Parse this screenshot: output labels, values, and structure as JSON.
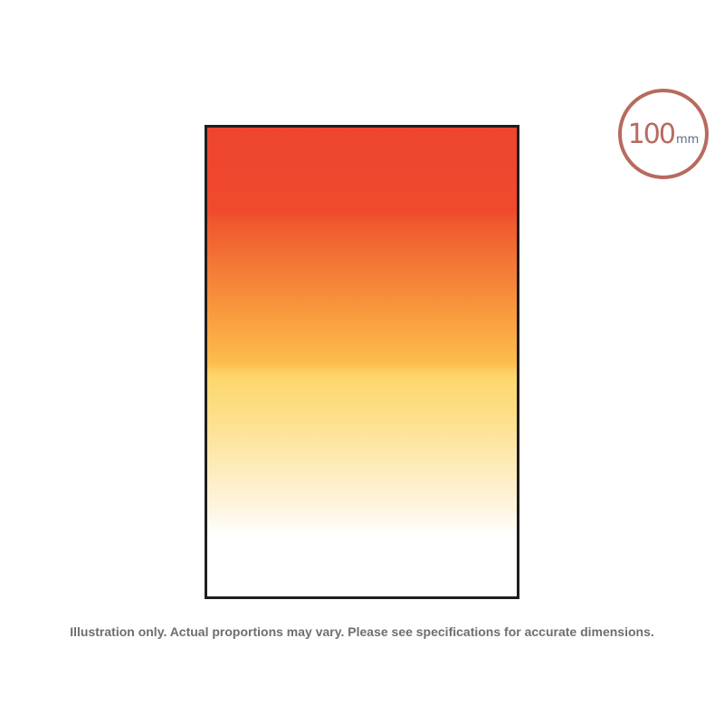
{
  "product": {
    "filter_gradient_colors": [
      "#ef4530",
      "#f47a37",
      "#fcbc4c",
      "#fdd66c",
      "#fdebb8",
      "#ffffff"
    ],
    "frame_color": "#1f1d1d"
  },
  "size_badge": {
    "number": "100",
    "unit": "mm",
    "ring_color": "#b76b5e",
    "unit_color": "#5a6b86"
  },
  "caption": {
    "text": "Illustration only. Actual proportions may vary. Please see specifications for accurate dimensions."
  }
}
